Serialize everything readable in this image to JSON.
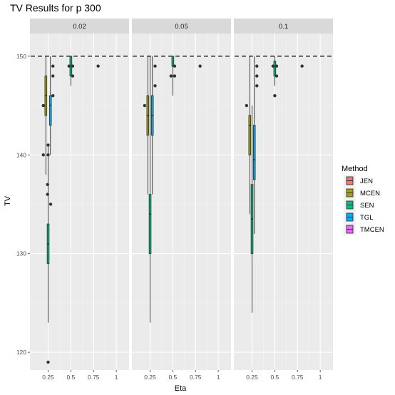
{
  "chart_data": {
    "type": "box",
    "title": "TV Results for p 300",
    "xlabel": "Eta",
    "ylabel": "TV",
    "facet_var": "p",
    "x_ticks": [
      "0.25",
      "0.5",
      "0.75",
      "1"
    ],
    "x_tick_values": [
      0.25,
      0.5,
      0.75,
      1
    ],
    "xlim": [
      0.05,
      1.14
    ],
    "y_ticks": [
      120,
      130,
      140,
      150
    ],
    "ylim": [
      118.2,
      152.3
    ],
    "grid": true,
    "legend": {
      "title": "Method",
      "position": "right",
      "entries": [
        {
          "label": "JEN",
          "color": "#F8766D"
        },
        {
          "label": "MCEN",
          "color": "#A3A500"
        },
        {
          "label": "SEN",
          "color": "#00BF7D"
        },
        {
          "label": "TGL",
          "color": "#00B0F6"
        },
        {
          "label": "TMCEN",
          "color": "#E76BF3"
        }
      ]
    },
    "dodge_offsets": {
      "JEN": -0.05,
      "MCEN": -0.025,
      "SEN": 0,
      "TGL": 0.025,
      "TMCEN": 0.05
    },
    "box_half_width": 0.0105,
    "reference_line": {
      "y": 150,
      "style": "dashed"
    },
    "panels": [
      {
        "strip": "0.02",
        "boxes": [
          {
            "method": "MCEN",
            "x": 0.25,
            "q1": 144,
            "median": 146,
            "q3": 148,
            "lower": 138,
            "upper": 150
          },
          {
            "method": "SEN",
            "x": 0.25,
            "q1": 129,
            "median": 131,
            "q3": 133,
            "lower": 123,
            "upper": 141
          },
          {
            "method": "TGL",
            "x": 0.25,
            "q1": 143,
            "median": 145,
            "q3": 146,
            "lower": 140,
            "upper": 150
          },
          {
            "method": "SEN",
            "x": 0.5,
            "q1": 148,
            "median": 149,
            "q3": 150,
            "lower": 147,
            "upper": 150
          }
        ],
        "outliers": [
          {
            "method": "MCEN",
            "x": 0.25,
            "y": 145,
            "dx": -0.028
          },
          {
            "method": "MCEN",
            "x": 0.25,
            "y": 140,
            "dx": -0.028
          },
          {
            "method": "SEN",
            "x": 0.25,
            "y": 141,
            "dx": 0
          },
          {
            "method": "SEN",
            "x": 0.25,
            "y": 140,
            "dx": 0
          },
          {
            "method": "SEN",
            "x": 0.25,
            "y": 137,
            "dx": -0.006
          },
          {
            "method": "SEN",
            "x": 0.25,
            "y": 136,
            "dx": -0.006
          },
          {
            "method": "SEN",
            "x": 0.25,
            "y": 135,
            "dx": 0.028
          },
          {
            "method": "SEN",
            "x": 0.25,
            "y": 119,
            "dx": 0
          },
          {
            "method": "TGL",
            "x": 0.25,
            "y": 149,
            "dx": 0.028
          },
          {
            "method": "TGL",
            "x": 0.25,
            "y": 148,
            "dx": 0.028
          },
          {
            "method": "TGL",
            "x": 0.25,
            "y": 146,
            "dx": 0.028
          },
          {
            "method": "SEN",
            "x": 0.5,
            "y": 149,
            "dx": -0.02
          },
          {
            "method": "SEN",
            "x": 0.5,
            "y": 148,
            "dx": 0.02
          },
          {
            "method": "SEN",
            "x": 0.5,
            "y": 149,
            "dx": 0.02
          },
          {
            "method": "TGL",
            "x": 0.75,
            "y": 149,
            "dx": 0.025
          }
        ]
      },
      {
        "strip": "0.05",
        "boxes": [
          {
            "method": "MCEN",
            "x": 0.25,
            "q1": 142,
            "median": 144,
            "q3": 146,
            "lower": 136,
            "upper": 150
          },
          {
            "method": "SEN",
            "x": 0.25,
            "q1": 130,
            "median": 134,
            "q3": 136,
            "lower": 123,
            "upper": 150
          },
          {
            "method": "TGL",
            "x": 0.25,
            "q1": 142,
            "median": 144,
            "q3": 146,
            "lower": 136,
            "upper": 150
          },
          {
            "method": "SEN",
            "x": 0.5,
            "q1": 149,
            "median": 149,
            "q3": 150,
            "lower": 146,
            "upper": 150
          }
        ],
        "outliers": [
          {
            "method": "MCEN",
            "x": 0.25,
            "y": 145,
            "dx": -0.035
          },
          {
            "method": "TGL",
            "x": 0.25,
            "y": 149,
            "dx": 0.03
          },
          {
            "method": "TGL",
            "x": 0.25,
            "y": 147,
            "dx": 0.03
          },
          {
            "method": "SEN",
            "x": 0.5,
            "y": 148,
            "dx": -0.02
          },
          {
            "method": "SEN",
            "x": 0.5,
            "y": 148,
            "dx": 0.02
          },
          {
            "method": "SEN",
            "x": 0.5,
            "y": 149,
            "dx": 0.02
          },
          {
            "method": "TGL",
            "x": 0.75,
            "y": 149,
            "dx": 0.025
          }
        ]
      },
      {
        "strip": "0.1",
        "boxes": [
          {
            "method": "MCEN",
            "x": 0.25,
            "q1": 140,
            "median": 143,
            "q3": 144,
            "lower": 134,
            "upper": 150
          },
          {
            "method": "SEN",
            "x": 0.25,
            "q1": 130,
            "median": 133.5,
            "q3": 137,
            "lower": 124,
            "upper": 145
          },
          {
            "method": "TGL",
            "x": 0.25,
            "q1": 137.5,
            "median": 139.5,
            "q3": 143,
            "lower": 132,
            "upper": 150
          },
          {
            "method": "SEN",
            "x": 0.5,
            "q1": 148,
            "median": 149,
            "q3": 149.5,
            "lower": 147,
            "upper": 150
          }
        ],
        "outliers": [
          {
            "method": "MCEN",
            "x": 0.25,
            "y": 145,
            "dx": -0.035
          },
          {
            "method": "TGL",
            "x": 0.25,
            "y": 149,
            "dx": 0.028
          },
          {
            "method": "TGL",
            "x": 0.25,
            "y": 148,
            "dx": 0.028
          },
          {
            "method": "TGL",
            "x": 0.25,
            "y": 147,
            "dx": 0.028
          },
          {
            "method": "SEN",
            "x": 0.5,
            "y": 146,
            "dx": 0
          },
          {
            "method": "SEN",
            "x": 0.5,
            "y": 149,
            "dx": -0.02
          },
          {
            "method": "SEN",
            "x": 0.5,
            "y": 148,
            "dx": 0.02
          },
          {
            "method": "SEN",
            "x": 0.5,
            "y": 149,
            "dx": 0.02
          },
          {
            "method": "TGL",
            "x": 0.75,
            "y": 149,
            "dx": 0.025
          }
        ]
      }
    ]
  }
}
